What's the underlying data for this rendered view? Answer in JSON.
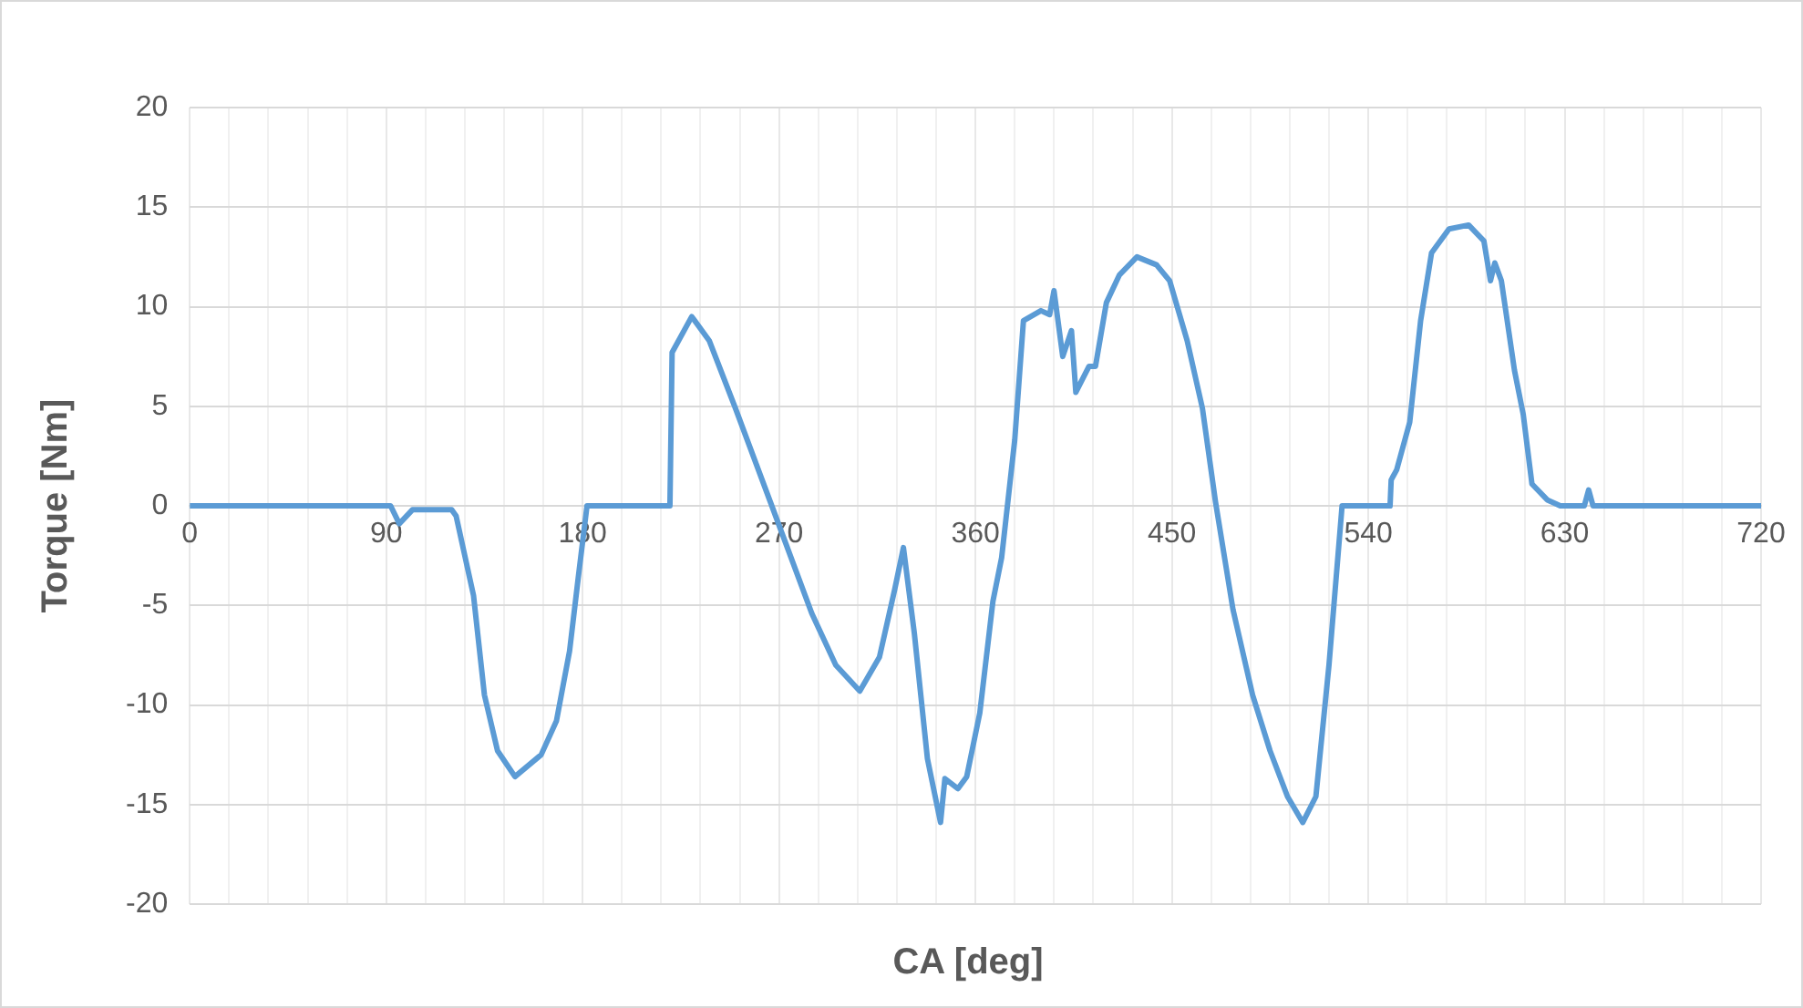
{
  "chart_data": {
    "type": "line",
    "xlabel": "CA [deg]",
    "ylabel": "Torque [Nm]",
    "color": "#5b9bd5",
    "marker": "none",
    "grid": true,
    "xlim": [
      0,
      720
    ],
    "ylim": [
      -20,
      20
    ],
    "xticks": [
      0,
      {
        "value": 18,
        "label": null
      },
      {
        "value": 36,
        "label": null
      },
      {
        "value": 54,
        "label": null
      },
      {
        "value": 72,
        "label": null
      },
      90,
      {
        "value": 108,
        "label": null
      },
      {
        "value": 126,
        "label": null
      },
      {
        "value": 144,
        "label": null
      },
      {
        "value": 162,
        "label": null
      },
      180,
      {
        "value": 198,
        "label": null
      },
      {
        "value": 216,
        "label": null
      },
      {
        "value": 234,
        "label": null
      },
      {
        "value": 252,
        "label": null
      },
      270,
      {
        "value": 288,
        "label": null
      },
      {
        "value": 306,
        "label": null
      },
      {
        "value": 324,
        "label": null
      },
      {
        "value": 342,
        "label": null
      },
      360,
      {
        "value": 378,
        "label": null
      },
      {
        "value": 396,
        "label": null
      },
      {
        "value": 414,
        "label": null
      },
      {
        "value": 432,
        "label": null
      },
      450,
      {
        "value": 468,
        "label": null
      },
      {
        "value": 486,
        "label": null
      },
      {
        "value": 504,
        "label": null
      },
      {
        "value": 522,
        "label": null
      },
      540,
      {
        "value": 558,
        "label": null
      },
      {
        "value": 576,
        "label": null
      },
      {
        "value": 594,
        "label": null
      },
      {
        "value": 612,
        "label": null
      },
      630,
      {
        "value": 648,
        "label": null
      },
      {
        "value": 666,
        "label": null
      },
      {
        "value": 684,
        "label": null
      },
      {
        "value": 702,
        "label": null
      },
      720
    ],
    "yticks": [
      -20,
      -15,
      -10,
      -5,
      0,
      5,
      10,
      15,
      20
    ],
    "x": [
      0,
      92,
      96,
      102,
      120,
      122,
      130,
      135,
      141,
      149,
      161,
      168,
      174,
      178,
      182,
      220,
      221,
      230,
      238,
      250,
      266,
      285,
      296,
      307,
      316,
      323,
      327,
      332,
      338,
      344,
      346,
      352,
      356,
      362,
      368,
      372,
      378,
      382,
      390,
      394,
      396,
      400,
      404,
      406,
      412,
      415,
      420,
      426,
      434,
      443,
      449,
      457,
      464,
      470,
      478,
      487,
      495,
      503,
      510,
      516,
      522,
      528,
      550,
      550.5,
      553,
      559,
      564,
      569,
      577,
      586,
      593,
      596,
      598,
      601,
      607,
      611,
      615,
      622,
      628,
      639,
      641,
      643,
      720
    ],
    "values": [
      0,
      0,
      -0.9,
      -0.2,
      -0.2,
      -0.5,
      -4.5,
      -9.5,
      -12.3,
      -13.6,
      -12.5,
      -10.8,
      -7.3,
      -3.6,
      0,
      0,
      7.7,
      9.5,
      8.3,
      4.9,
      0.2,
      -5.4,
      -8.0,
      -9.3,
      -7.6,
      -4.2,
      -2.1,
      -6.4,
      -12.7,
      -15.9,
      -13.7,
      -14.2,
      -13.6,
      -10.4,
      -4.8,
      -2.6,
      3.3,
      9.3,
      9.8,
      9.6,
      10.8,
      7.5,
      8.8,
      5.7,
      7.0,
      7.0,
      10.2,
      11.6,
      12.5,
      12.1,
      11.3,
      8.3,
      4.9,
      0.2,
      -5.2,
      -9.5,
      -12.3,
      -14.6,
      -15.9,
      -14.6,
      -8,
      0,
      0,
      1.3,
      1.8,
      4.2,
      9.3,
      12.7,
      13.9,
      14.1,
      13.3,
      11.3,
      12.2,
      11.3,
      6.8,
      4.6,
      1.1,
      0.3,
      0,
      0,
      0.8,
      0,
      0
    ]
  }
}
